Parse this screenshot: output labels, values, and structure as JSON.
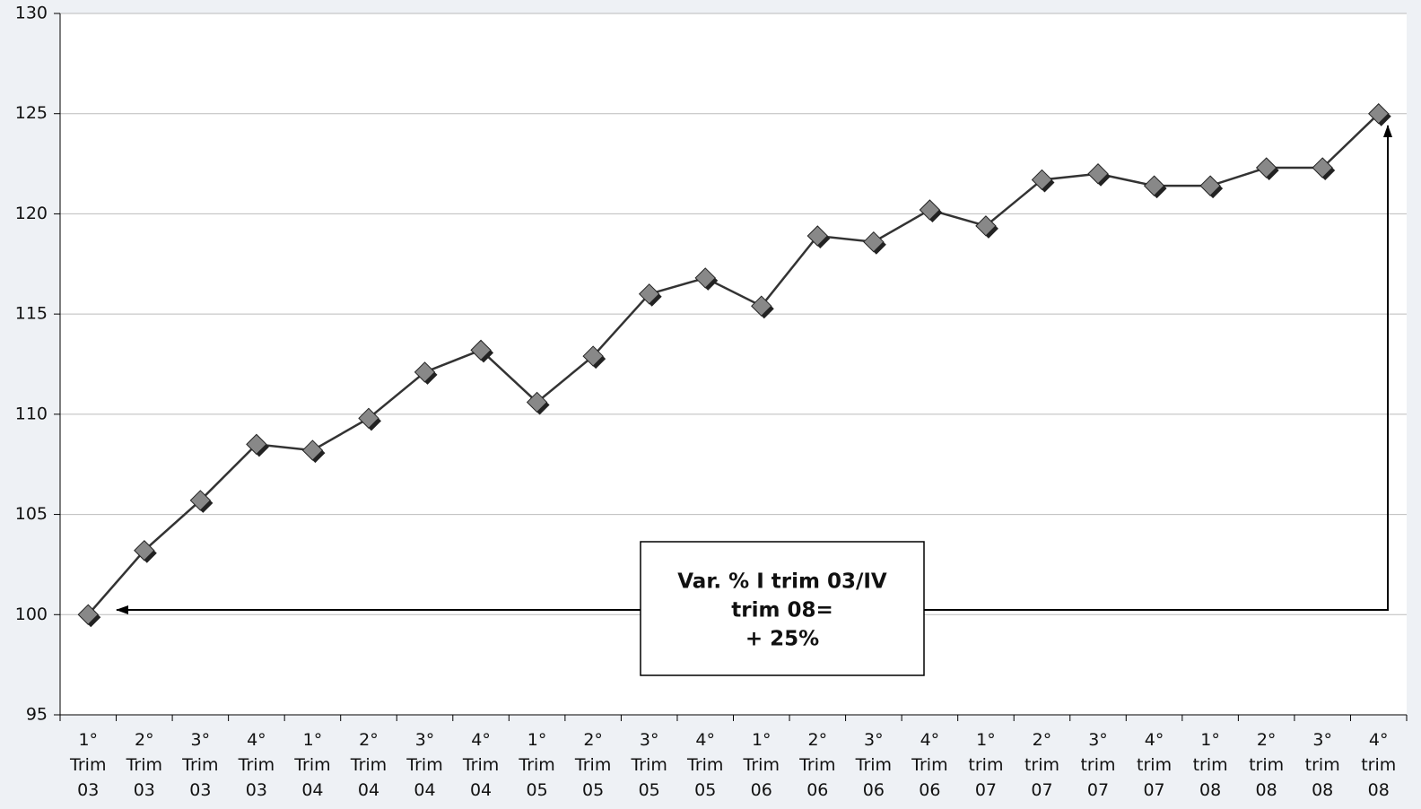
{
  "chart_data": {
    "type": "line",
    "categories": [
      "1° Trim 03",
      "2° Trim 03",
      "3° Trim 03",
      "4° Trim 03",
      "1° Trim 04",
      "2° Trim 04",
      "3° Trim 04",
      "4° Trim 04",
      "1° Trim 05",
      "2° Trim 05",
      "3° Trim 05",
      "4° Trim 05",
      "1° Trim 06",
      "2° Trim 06",
      "3° Trim 06",
      "4° Trim 06",
      "1° trim 07",
      "2° trim 07",
      "3° trim 07",
      "4° trim 07",
      "1° trim 08",
      "2° trim 08",
      "3° trim 08",
      "4° trim 08"
    ],
    "series": [
      {
        "color": "#888888",
        "values": [
          100,
          103.2,
          105.7,
          108.5,
          108.2,
          109.8,
          112.1,
          113.2,
          110.6,
          112.9,
          116.0,
          116.8,
          115.4,
          118.9,
          118.6,
          120.2,
          119.4,
          121.7,
          122.0,
          121.4,
          121.4,
          122.3,
          122.3,
          125.0
        ]
      }
    ],
    "ylim": [
      95,
      130
    ],
    "yticks": [
      95,
      100,
      105,
      110,
      115,
      120,
      125,
      130
    ],
    "grid": true,
    "annotation": {
      "lines": [
        "Var. % I trim 03/IV",
        "trim 08=",
        "+ 25%"
      ]
    }
  }
}
